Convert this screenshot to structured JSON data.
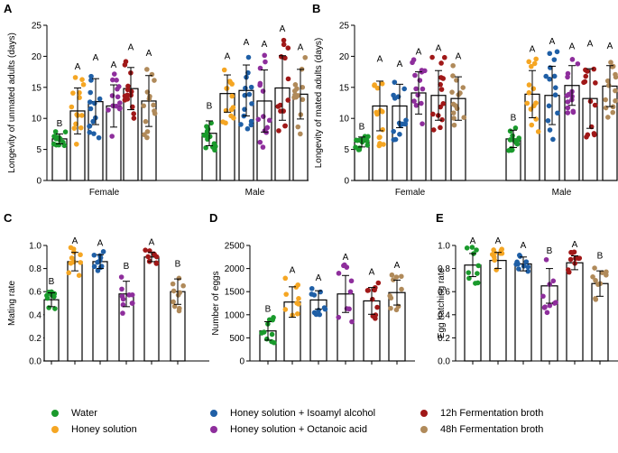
{
  "legend": {
    "items": [
      {
        "label": "Water",
        "color": "#1a9a2c"
      },
      {
        "label": "Honey solution",
        "color": "#f5a623"
      },
      {
        "label": "Honey solution + Isoamyl alcohol",
        "color": "#1f5fa6"
      },
      {
        "label": "Honey solution + Octanoic acid",
        "color": "#8e2e9c"
      },
      {
        "label": "12h Fermentation broth",
        "color": "#a01818"
      },
      {
        "label": "48h Fermentation broth",
        "color": "#b08a5a"
      }
    ]
  },
  "chart_data": [
    {
      "panel": "A",
      "type": "bar",
      "ylabel": "Longevity of unmated adults (days)",
      "ylim": [
        0,
        25
      ],
      "yticks": [
        0,
        5,
        10,
        15,
        20,
        25
      ],
      "groups": [
        "Female",
        "Male"
      ],
      "series": [
        {
          "name": "Water",
          "values": [
            6.7,
            7.6
          ],
          "errors": [
            0.8,
            2.0
          ],
          "letters": [
            "B",
            "B"
          ]
        },
        {
          "name": "Honey solution",
          "values": [
            11.2,
            14.0
          ],
          "errors": [
            3.7,
            3.0
          ],
          "letters": [
            "A",
            "A"
          ]
        },
        {
          "name": "Honey solution + Isoamyl alcohol",
          "values": [
            12.7,
            14.5
          ],
          "errors": [
            3.7,
            4.1
          ],
          "letters": [
            "A",
            "A"
          ]
        },
        {
          "name": "Honey solution + Octanoic acid",
          "values": [
            12.0,
            12.8
          ],
          "errors": [
            3.4,
            5.0
          ],
          "letters": [
            "A",
            "A"
          ]
        },
        {
          "name": "12h Fermentation broth",
          "values": [
            14.8,
            14.9
          ],
          "errors": [
            3.4,
            5.2
          ],
          "letters": [
            "A",
            "A"
          ]
        },
        {
          "name": "48h Fermentation broth",
          "values": [
            12.8,
            13.9
          ],
          "errors": [
            4.1,
            4.0
          ],
          "letters": [
            "A",
            "A"
          ]
        }
      ]
    },
    {
      "panel": "B",
      "type": "bar",
      "ylabel": "Longevity of mated adults (days)",
      "ylim": [
        0,
        25
      ],
      "yticks": [
        0,
        5,
        10,
        15,
        20,
        25
      ],
      "groups": [
        "Female",
        "Male"
      ],
      "series": [
        {
          "name": "Water",
          "values": [
            6.2,
            6.7
          ],
          "errors": [
            0.8,
            1.4
          ],
          "letters": [
            "B",
            "B"
          ]
        },
        {
          "name": "Honey solution",
          "values": [
            12.0,
            13.9
          ],
          "errors": [
            4.0,
            3.8
          ],
          "letters": [
            "A",
            "A"
          ]
        },
        {
          "name": "Honey solution + Isoamyl alcohol",
          "values": [
            12.0,
            13.7
          ],
          "errors": [
            3.5,
            4.7
          ],
          "letters": [
            "A",
            "A"
          ]
        },
        {
          "name": "Honey solution + Octanoic acid",
          "values": [
            14.1,
            15.3
          ],
          "errors": [
            3.4,
            3.2
          ],
          "letters": [
            "A",
            "A"
          ]
        },
        {
          "name": "12h Fermentation broth",
          "values": [
            13.7,
            13.2
          ],
          "errors": [
            4.0,
            4.8
          ],
          "letters": [
            "A",
            "A"
          ]
        },
        {
          "name": "48h Fermentation broth",
          "values": [
            13.2,
            15.2
          ],
          "errors": [
            3.5,
            3.3
          ],
          "letters": [
            "A",
            "A"
          ]
        }
      ]
    },
    {
      "panel": "C",
      "type": "bar",
      "ylabel": "Mating rate",
      "ylim": [
        0,
        1.0
      ],
      "yticks": [
        0,
        0.2,
        0.4,
        0.6,
        0.8,
        1.0
      ],
      "series": [
        {
          "name": "Water",
          "values": [
            0.53
          ],
          "errors": [
            0.06
          ],
          "letters": [
            "B"
          ]
        },
        {
          "name": "Honey solution",
          "values": [
            0.86
          ],
          "errors": [
            0.08
          ],
          "letters": [
            "A"
          ]
        },
        {
          "name": "Honey solution + Isoamyl alcohol",
          "values": [
            0.86
          ],
          "errors": [
            0.06
          ],
          "letters": [
            "A"
          ]
        },
        {
          "name": "Honey solution + Octanoic acid",
          "values": [
            0.58
          ],
          "errors": [
            0.11
          ],
          "letters": [
            "B"
          ]
        },
        {
          "name": "12h Fermentation broth",
          "values": [
            0.9
          ],
          "errors": [
            0.04
          ],
          "letters": [
            "A"
          ]
        },
        {
          "name": "48h Fermentation broth",
          "values": [
            0.6
          ],
          "errors": [
            0.11
          ],
          "letters": [
            "B"
          ]
        }
      ]
    },
    {
      "panel": "D",
      "type": "bar",
      "ylabel": "Number of eggs",
      "ylim": [
        0,
        2500
      ],
      "yticks": [
        0,
        500,
        1000,
        1500,
        2000,
        2500
      ],
      "series": [
        {
          "name": "Water",
          "values": [
            650
          ],
          "errors": [
            200
          ],
          "letters": [
            "B"
          ]
        },
        {
          "name": "Honey solution",
          "values": [
            1275
          ],
          "errors": [
            330
          ],
          "letters": [
            "A"
          ]
        },
        {
          "name": "Honey solution + Isoamyl alcohol",
          "values": [
            1320
          ],
          "errors": [
            200
          ],
          "letters": [
            "A"
          ]
        },
        {
          "name": "Honey solution + Octanoic acid",
          "values": [
            1450
          ],
          "errors": [
            400
          ],
          "letters": [
            "A"
          ]
        },
        {
          "name": "12h Fermentation broth",
          "values": [
            1300
          ],
          "errors": [
            290
          ],
          "letters": [
            "A"
          ]
        },
        {
          "name": "48h Fermentation broth",
          "values": [
            1480
          ],
          "errors": [
            270
          ],
          "letters": [
            "A"
          ]
        }
      ]
    },
    {
      "panel": "E",
      "type": "bar",
      "ylabel": "Egg hatching rate",
      "ylim": [
        0,
        1.0
      ],
      "yticks": [
        0,
        0.2,
        0.4,
        0.6,
        0.8,
        1.0
      ],
      "series": [
        {
          "name": "Water",
          "values": [
            0.83
          ],
          "errors": [
            0.1
          ],
          "letters": [
            "A"
          ]
        },
        {
          "name": "Honey solution",
          "values": [
            0.87
          ],
          "errors": [
            0.07
          ],
          "letters": [
            "A"
          ]
        },
        {
          "name": "Honey solution + Isoamyl alcohol",
          "values": [
            0.84
          ],
          "errors": [
            0.06
          ],
          "letters": [
            "A"
          ]
        },
        {
          "name": "Honey solution + Octanoic acid",
          "values": [
            0.65
          ],
          "errors": [
            0.15
          ],
          "letters": [
            "B"
          ]
        },
        {
          "name": "12h Fermentation broth",
          "values": [
            0.85
          ],
          "errors": [
            0.06
          ],
          "letters": [
            "A"
          ]
        },
        {
          "name": "48h Fermentation broth",
          "values": [
            0.67
          ],
          "errors": [
            0.11
          ],
          "letters": [
            "B"
          ]
        }
      ]
    }
  ]
}
